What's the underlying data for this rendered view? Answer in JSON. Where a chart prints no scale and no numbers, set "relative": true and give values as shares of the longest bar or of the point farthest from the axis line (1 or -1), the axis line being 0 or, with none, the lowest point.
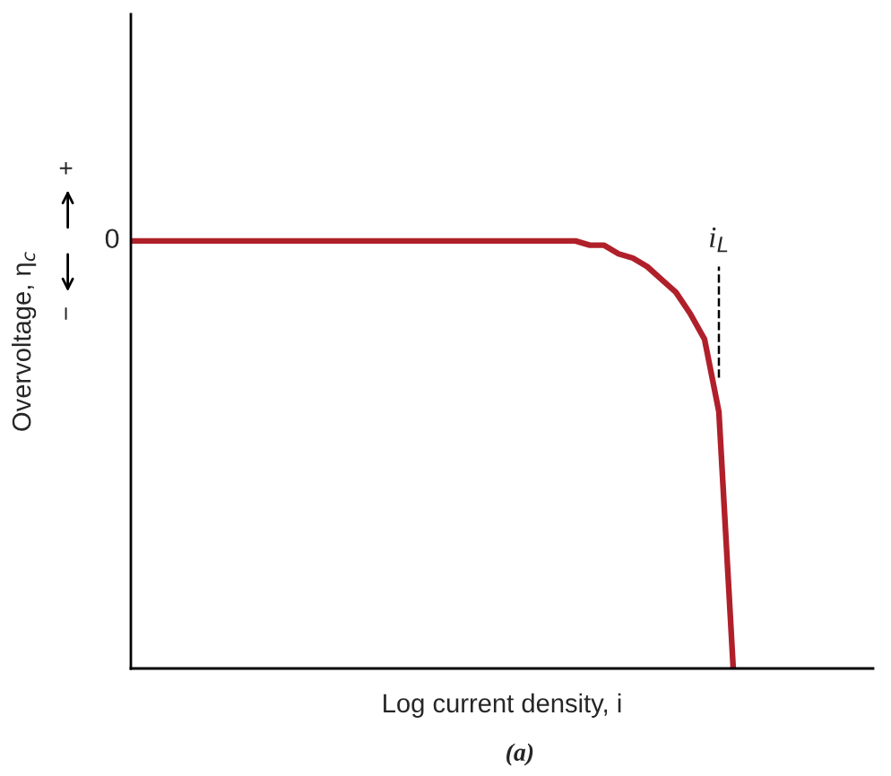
{
  "chart_data": {
    "type": "line",
    "relative": true,
    "xlabel": "Log current density, i",
    "ylabel": "Overvoltage, η$_{c}$",
    "categories": [
      null,
      null,
      null,
      null,
      null,
      null,
      null,
      null,
      null,
      null,
      null,
      null,
      null,
      null,
      null,
      null,
      null,
      null,
      null,
      null,
      null,
      null,
      null,
      null,
      null,
      null,
      null,
      null,
      null,
      null,
      null,
      null,
      null,
      null,
      null,
      null,
      null,
      null,
      null,
      null,
      null,
      null,
      null,
      null,
      null,
      null,
      null,
      null,
      null,
      null,
      null,
      null
    ],
    "series": [
      {
        "color": "#b0202a",
        "values": [
          1,
          1,
          1,
          1,
          1,
          1,
          1,
          1,
          1,
          1,
          1,
          1,
          1,
          1,
          1,
          1,
          1,
          1,
          1,
          1,
          1,
          1,
          1,
          1,
          1,
          1,
          1,
          1,
          1,
          1,
          1,
          1,
          0.99,
          0.99,
          0.97,
          0.96,
          0.94,
          0.91,
          0.88,
          0.83,
          0.77,
          0.6,
          0,
          null,
          null,
          null,
          null,
          null,
          null,
          null,
          null,
          null
        ]
      }
    ],
    "annotations": [
      "0",
      "+",
      "−",
      "i$_{L}$",
      "(a)"
    ],
    "marker": "none",
    "line_style": "solid"
  }
}
